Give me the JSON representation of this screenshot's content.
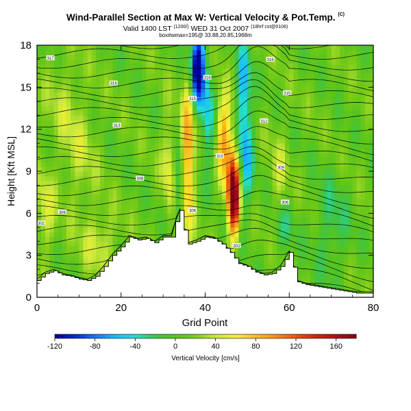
{
  "chart_data": {
    "type": "heatmap",
    "title": "Wind-Parallel Section at Max W: Vertical Velocity & Pot.Temp.",
    "title_mark": "(C)",
    "subtitle_valid": "Valid 1400 LST",
    "subtitle_init": "(1200/)",
    "subtitle_date": "WED 31 Oct 2007",
    "subtitle_grid": "(18hrf cst@0106)",
    "subtitle_box": "box#wmax=195@ 33.88,20.85,1968m",
    "xlabel": "Grid Point",
    "ylabel": "Height [Kft MSL]",
    "xlim": [
      0,
      80
    ],
    "ylim": [
      0,
      18
    ],
    "xticks": [
      "0",
      "20",
      "40",
      "60",
      "80"
    ],
    "yticks": [
      "0",
      "3",
      "6",
      "9",
      "12",
      "15",
      "18"
    ],
    "colorbar": {
      "label": "Vertical Velocity [cm/s]",
      "range": [
        -120,
        180
      ],
      "ticks": [
        "-120",
        "-80",
        "-40",
        "0",
        "40",
        "80",
        "120",
        "160"
      ]
    },
    "updraft_peak_cms": 195,
    "terrain_x": [
      0,
      2,
      4,
      6,
      8,
      10,
      12,
      14,
      16,
      18,
      20,
      22,
      24,
      26,
      28,
      30,
      32,
      33,
      34,
      35,
      36,
      38,
      40,
      42,
      44,
      46,
      48,
      50,
      52,
      54,
      56,
      58,
      60,
      62,
      64,
      66,
      68,
      70,
      72,
      74,
      76,
      78,
      80
    ],
    "terrain_kft": [
      1.2,
      1.7,
      1.9,
      1.6,
      1.5,
      1.3,
      1.2,
      1.5,
      2.2,
      3.0,
      3.6,
      4.3,
      4.1,
      4.2,
      3.9,
      4.3,
      4.3,
      5.4,
      6.2,
      4.8,
      3.8,
      4.0,
      4.3,
      4.2,
      3.8,
      3.2,
      2.4,
      2.2,
      1.8,
      1.6,
      1.7,
      2.2,
      3.2,
      1.1,
      0.9,
      0.8,
      0.7,
      0.6,
      0.5,
      0.4,
      0.3,
      0.3,
      0.3
    ],
    "theta_contour_labels": [
      {
        "text": "317",
        "x": 3.2,
        "y": 17.1
      },
      {
        "text": "316",
        "x": 18.2,
        "y": 15.3
      },
      {
        "text": "316",
        "x": 40.5,
        "y": 15.7
      },
      {
        "text": "316",
        "x": 55.5,
        "y": 17.0
      },
      {
        "text": "315",
        "x": 37.0,
        "y": 14.2
      },
      {
        "text": "315",
        "x": 59.5,
        "y": 14.6
      },
      {
        "text": "313",
        "x": 19.0,
        "y": 12.3
      },
      {
        "text": "312",
        "x": 54.0,
        "y": 12.6
      },
      {
        "text": "310",
        "x": 43.5,
        "y": 10.1
      },
      {
        "text": "309",
        "x": 58.0,
        "y": 9.3
      },
      {
        "text": "308",
        "x": 24.5,
        "y": 8.5
      },
      {
        "text": "306",
        "x": 6.0,
        "y": 6.1
      },
      {
        "text": "306",
        "x": 37.0,
        "y": 6.2
      },
      {
        "text": "306",
        "x": 59.0,
        "y": 6.8
      },
      {
        "text": "302",
        "x": 1.0,
        "y": 5.3
      },
      {
        "text": "302",
        "x": 47.5,
        "y": 3.7
      }
    ]
  }
}
